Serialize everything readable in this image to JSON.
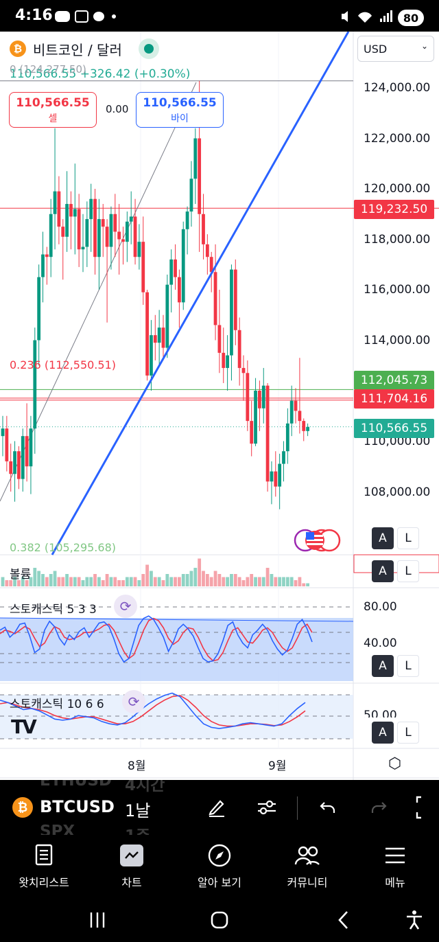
{
  "status_bar": {
    "time": "4:16",
    "battery": "80"
  },
  "header": {
    "symbol_title": "비트코인 / 달러",
    "coin_glyph": "₿",
    "price": "110,566.55",
    "change": "+326.42 (+0.30%)",
    "fib_top_label": "0 (124,277.50)"
  },
  "trade": {
    "sell_price": "110,566.55",
    "sell_label": "셀",
    "spread": "0.00",
    "buy_price": "110,566.55",
    "buy_label": "바이"
  },
  "currency": {
    "selected": "USD"
  },
  "price_axis": {
    "ticks": [
      "124,000.00",
      "122,000.00",
      "120,000.00",
      "118,000.00",
      "116,000.00",
      "114,000.00",
      "110,000.00",
      "108,000.00"
    ],
    "tag_high": "119,232.50",
    "tag_green": "112,045.73",
    "tag_red": "111,704.16",
    "tag_last": "110,566.55"
  },
  "fib": {
    "level_0236": "0.236 (112,550.51)",
    "level_0382": "0.382 (105,295.68)"
  },
  "scale_buttons": {
    "auto": "A",
    "log": "L"
  },
  "volume": {
    "label": "볼륨"
  },
  "stoch1": {
    "label": "스토캐스틱 5 3 3",
    "axis_top": "80.00",
    "axis_mid": "40.00"
  },
  "stoch2": {
    "label": "스토캐스틱 10 6 6",
    "axis_mid": "50.00"
  },
  "time_axis": {
    "m8": "8월",
    "m9": "9월"
  },
  "toolbar": {
    "symbol": "BTCUSD",
    "interval": "1날",
    "ghost_prev_symbol": "ETHUSD",
    "ghost_prev_interval": "4시간",
    "ghost_next_symbol": "SPX",
    "ghost_next_interval": "1주"
  },
  "nav": {
    "watchlist": "왓치리스트",
    "chart": "차트",
    "explore": "알아 보기",
    "community": "커뮤니티",
    "menu": "메뉴"
  },
  "colors": {
    "up": "#089981",
    "down": "#f23645",
    "trendline": "#2962ff",
    "bitcoin": "#f7931a"
  },
  "chart_data": {
    "type": "candlestick",
    "interval": "1날",
    "candles": [
      [
        110200,
        111000,
        109400,
        110500
      ],
      [
        110500,
        111000,
        108800,
        109200
      ],
      [
        109200,
        109900,
        108000,
        108700
      ],
      [
        108700,
        110000,
        107600,
        109600
      ],
      [
        109600,
        109800,
        108100,
        108500
      ],
      [
        108500,
        110500,
        108000,
        110200
      ],
      [
        110200,
        111500,
        108400,
        109000
      ],
      [
        109000,
        111000,
        107900,
        110500
      ],
      [
        110500,
        114500,
        109500,
        114000
      ],
      [
        114000,
        117000,
        113000,
        116500
      ],
      [
        116500,
        118300,
        115500,
        117400
      ],
      [
        117400,
        117700,
        116200,
        117300
      ],
      [
        117300,
        119600,
        116500,
        119000
      ],
      [
        119000,
        122400,
        117600,
        119900
      ],
      [
        119900,
        120500,
        117800,
        118500
      ],
      [
        118500,
        118800,
        116400,
        118100
      ],
      [
        118100,
        120700,
        117500,
        119400
      ],
      [
        119400,
        119900,
        117600,
        118900
      ],
      [
        118900,
        121000,
        117400,
        119200
      ],
      [
        119200,
        119800,
        116900,
        117600
      ],
      [
        117600,
        119000,
        116700,
        117700
      ],
      [
        117700,
        119500,
        116900,
        118800
      ],
      [
        118800,
        120200,
        117500,
        119600
      ],
      [
        119600,
        120000,
        116600,
        117300
      ],
      [
        117300,
        119600,
        116000,
        118800
      ],
      [
        118800,
        119400,
        117300,
        118500
      ],
      [
        118500,
        118800,
        114700,
        117700
      ],
      [
        117700,
        119300,
        116800,
        119000
      ],
      [
        119000,
        119800,
        117300,
        118300
      ],
      [
        118300,
        119400,
        116600,
        118000
      ],
      [
        118000,
        118500,
        117000,
        117900
      ],
      [
        117900,
        119100,
        117100,
        118700
      ],
      [
        118700,
        119900,
        117800,
        118900
      ],
      [
        118900,
        119600,
        117000,
        117300
      ],
      [
        117300,
        118600,
        116800,
        117900
      ],
      [
        117900,
        118900,
        115400,
        115900
      ],
      [
        115900,
        116000,
        112400,
        112600
      ],
      [
        112600,
        114800,
        112000,
        114200
      ],
      [
        114200,
        115000,
        113200,
        113900
      ],
      [
        113900,
        115200,
        113000,
        114500
      ],
      [
        114500,
        115000,
        113200,
        113700
      ],
      [
        113700,
        116600,
        113300,
        116200
      ],
      [
        116200,
        117600,
        115100,
        117200
      ],
      [
        117200,
        117800,
        116000,
        116500
      ],
      [
        116500,
        116800,
        114500,
        115500
      ],
      [
        115500,
        118700,
        115200,
        118400
      ],
      [
        118400,
        119300,
        117400,
        119100
      ],
      [
        119100,
        121100,
        118500,
        120400
      ],
      [
        120400,
        122400,
        119400,
        122000
      ],
      [
        122000,
        124277,
        117500,
        119000
      ],
      [
        119000,
        119800,
        117200,
        117800
      ],
      [
        117800,
        118200,
        116600,
        117300
      ],
      [
        117300,
        117500,
        115900,
        116700
      ],
      [
        116700,
        117800,
        114000,
        114600
      ],
      [
        114600,
        116000,
        112700,
        113500
      ],
      [
        113500,
        114500,
        112300,
        112900
      ],
      [
        112900,
        114200,
        112000,
        113400
      ],
      [
        113400,
        117000,
        112400,
        116800
      ],
      [
        116800,
        117200,
        113800,
        114400
      ],
      [
        114400,
        114900,
        112200,
        112900
      ],
      [
        112900,
        113400,
        111600,
        112700
      ],
      [
        112700,
        113200,
        110400,
        110800
      ],
      [
        110800,
        111600,
        109400,
        109900
      ],
      [
        109900,
        112500,
        109800,
        112000
      ],
      [
        112000,
        112400,
        110400,
        111300
      ],
      [
        111300,
        112900,
        110700,
        112200
      ],
      [
        112200,
        112300,
        108000,
        108400
      ],
      [
        108400,
        109200,
        107500,
        108800
      ],
      [
        108800,
        109600,
        107800,
        108200
      ],
      [
        108200,
        109500,
        107300,
        109100
      ],
      [
        109100,
        110000,
        108400,
        109600
      ],
      [
        109600,
        111300,
        109100,
        110700
      ],
      [
        110700,
        112200,
        110200,
        111600
      ],
      [
        111600,
        112100,
        110700,
        111200
      ],
      [
        111200,
        113300,
        110300,
        110800
      ],
      [
        110800,
        110900,
        110000,
        110400
      ],
      [
        110400,
        110700,
        110200,
        110566.55
      ]
    ],
    "overlays": {
      "horizontal_high": 119232.5,
      "horizontal_green": 112045.73,
      "horizontal_red": 111704.16,
      "last_price": 110566.55,
      "fib_0": 124277.5,
      "fib_0236": 112550.51,
      "fib_0382": 105295.68
    },
    "volume": [
      3,
      2,
      2,
      3,
      2,
      3,
      2,
      3,
      6,
      5,
      4,
      3,
      4,
      5,
      3,
      3,
      4,
      3,
      3,
      3,
      2,
      3,
      3,
      4,
      3,
      2,
      4,
      3,
      3,
      2,
      2,
      3,
      3,
      3,
      2,
      4,
      7,
      5,
      3,
      3,
      2,
      4,
      3,
      3,
      3,
      4,
      4,
      5,
      6,
      9,
      5,
      4,
      3,
      5,
      4,
      3,
      3,
      4,
      4,
      3,
      2,
      3,
      4,
      3,
      3,
      3,
      6,
      4,
      3,
      3,
      3,
      3,
      3,
      2,
      3,
      1,
      1
    ],
    "stoch1_k": [
      70,
      75,
      58,
      66,
      80,
      82,
      60,
      32,
      38,
      70,
      85,
      76,
      56,
      45,
      62,
      54,
      68,
      74,
      58,
      70,
      82,
      84,
      76,
      55,
      30,
      16,
      22,
      50,
      78,
      90,
      94,
      88,
      74,
      58,
      34,
      50,
      72,
      80,
      72,
      60,
      40,
      22,
      16,
      18,
      30,
      52,
      78,
      84,
      62,
      48,
      40,
      62,
      70,
      80,
      70,
      52,
      38,
      28,
      36,
      56,
      80,
      88,
      72,
      50
    ],
    "stoch1_d": [
      64,
      70,
      68,
      64,
      70,
      76,
      72,
      56,
      42,
      48,
      64,
      76,
      72,
      58,
      54,
      56,
      60,
      66,
      66,
      68,
      72,
      78,
      80,
      70,
      52,
      34,
      22,
      28,
      48,
      70,
      86,
      90,
      86,
      74,
      56,
      46,
      52,
      66,
      74,
      72,
      58,
      40,
      26,
      18,
      20,
      32,
      52,
      70,
      74,
      62,
      50,
      48,
      58,
      70,
      74,
      66,
      52,
      40,
      34,
      40,
      56,
      74,
      80,
      66
    ],
    "stoch2_k": [
      70,
      66,
      60,
      54,
      56,
      52,
      45,
      38,
      36,
      38,
      44,
      42,
      40,
      34,
      30,
      28,
      32,
      42,
      54,
      64,
      72,
      78,
      82,
      76,
      60,
      44,
      30,
      24,
      22,
      24,
      26,
      30,
      32,
      30,
      28,
      26,
      30,
      44,
      56,
      66
    ],
    "stoch2_d": [
      64,
      66,
      62,
      58,
      56,
      54,
      50,
      44,
      40,
      38,
      40,
      42,
      42,
      38,
      34,
      30,
      30,
      34,
      42,
      52,
      62,
      70,
      76,
      78,
      70,
      58,
      44,
      34,
      28,
      26,
      26,
      28,
      30,
      30,
      29,
      27,
      28,
      34,
      42,
      52
    ],
    "stoch1_levels": [
      80,
      50,
      20
    ],
    "stoch2_levels": [
      80,
      50,
      20
    ]
  }
}
